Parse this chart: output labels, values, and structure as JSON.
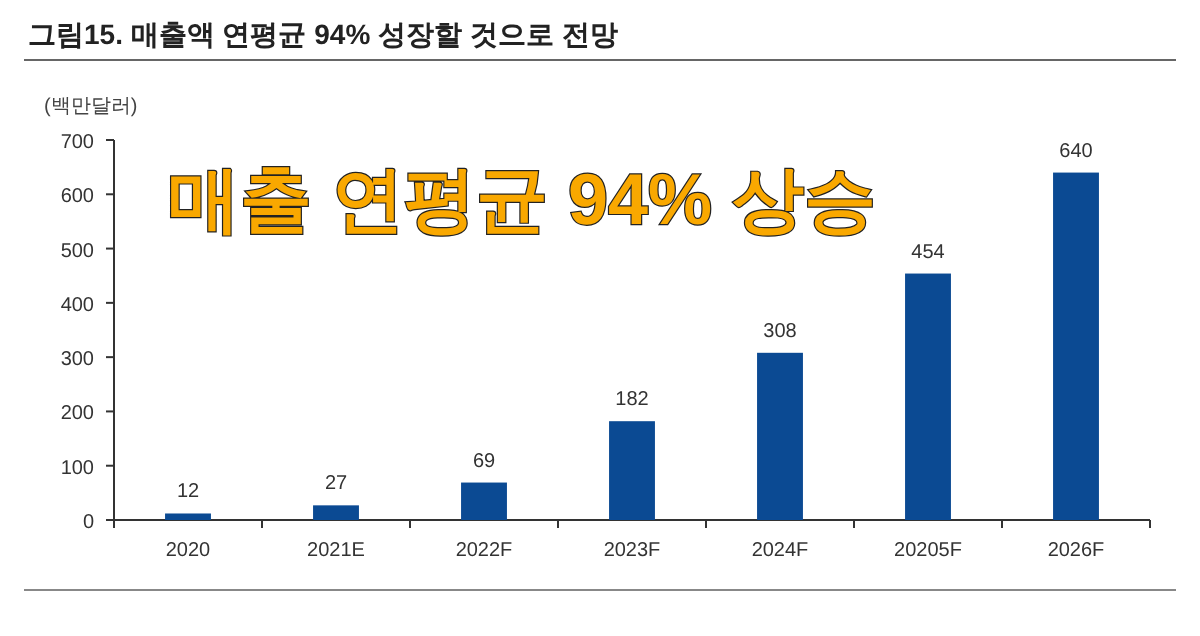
{
  "chart_data": {
    "type": "bar",
    "title": "그림15. 매출액 연평균 94% 성장할 것으로 전망",
    "ylabel": "(백만달러)",
    "annotations": [
      "매출 연평균 94% 상승"
    ],
    "categories": [
      "2020",
      "2021E",
      "2022F",
      "2023F",
      "2024F",
      "20205F",
      "2026F"
    ],
    "values": [
      12,
      27,
      69,
      182,
      308,
      454,
      640
    ],
    "color": "#0b4a93",
    "ylim": [
      0,
      700
    ],
    "yticks": [
      0,
      100,
      200,
      300,
      400,
      500,
      600,
      700
    ],
    "data_labels": true
  }
}
